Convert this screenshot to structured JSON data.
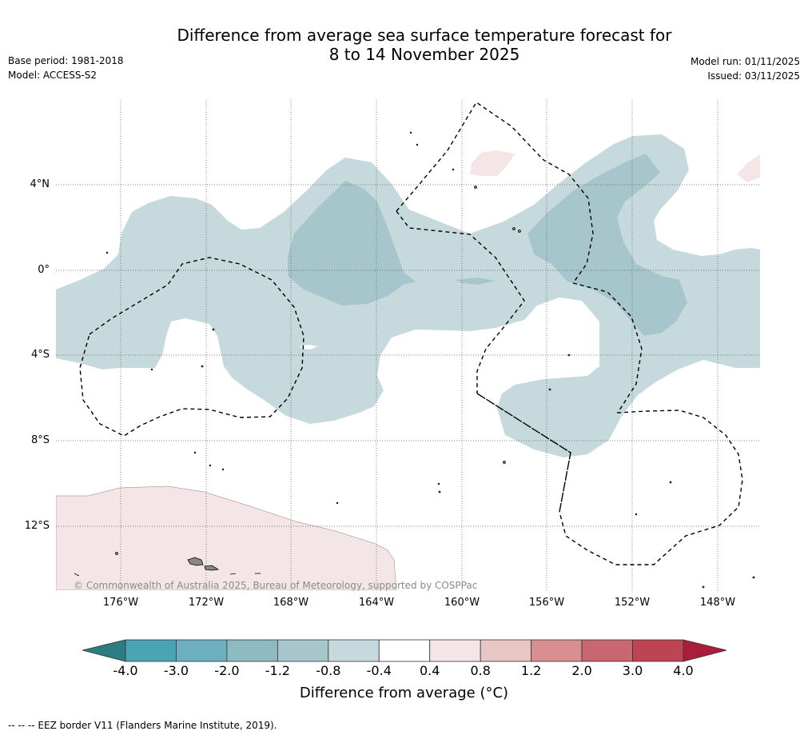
{
  "header": {
    "title_line1": "Difference from average sea surface temperature forecast for",
    "title_line2": "8 to 14 November 2025",
    "base_period": "Base period: 1981-2018",
    "model": "Model: ACCESS-S2",
    "model_run": "Model run: 01/11/2025",
    "issued": "Issued: 03/11/2025"
  },
  "map": {
    "credit": "© Commonwealth of Australia 2025, Bureau of Meteorology, supported by COSPPac",
    "lon_labels": [
      "176°W",
      "172°W",
      "168°W",
      "164°W",
      "160°W",
      "156°W",
      "152°W",
      "148°W"
    ],
    "lat_labels": [
      "4°N",
      "0°",
      "4°S",
      "8°S",
      "12°S"
    ],
    "bands": [
      {
        "range": "-1.2 to -0.8",
        "color": "#a6c6cb"
      },
      {
        "range": "-0.8 to -0.4",
        "color": "#c6dade"
      },
      {
        "range": "0.4 to 0.8",
        "color": "#f4e6e7"
      }
    ]
  },
  "colorbar": {
    "ticks": [
      "-4.0",
      "-3.0",
      "-2.0",
      "-1.2",
      "-0.8",
      "-0.4",
      "0.4",
      "0.8",
      "1.2",
      "2.0",
      "3.0",
      "4.0"
    ],
    "colors": [
      "#4aa4b4",
      "#6cafbe",
      "#8ebac2",
      "#a6c6cb",
      "#c6dade",
      "#ffffff",
      "#f4e6e7",
      "#e8c6c3",
      "#d7908f",
      "#c96771",
      "#bd4553"
    ],
    "under_color": "#2c7c84",
    "over_color": "#aa1e3c",
    "label": "Difference from average (°C)"
  },
  "footer": {
    "eez_note": "--  --  -- EEZ border V11 (Flanders Marine Institute, 2019)."
  }
}
